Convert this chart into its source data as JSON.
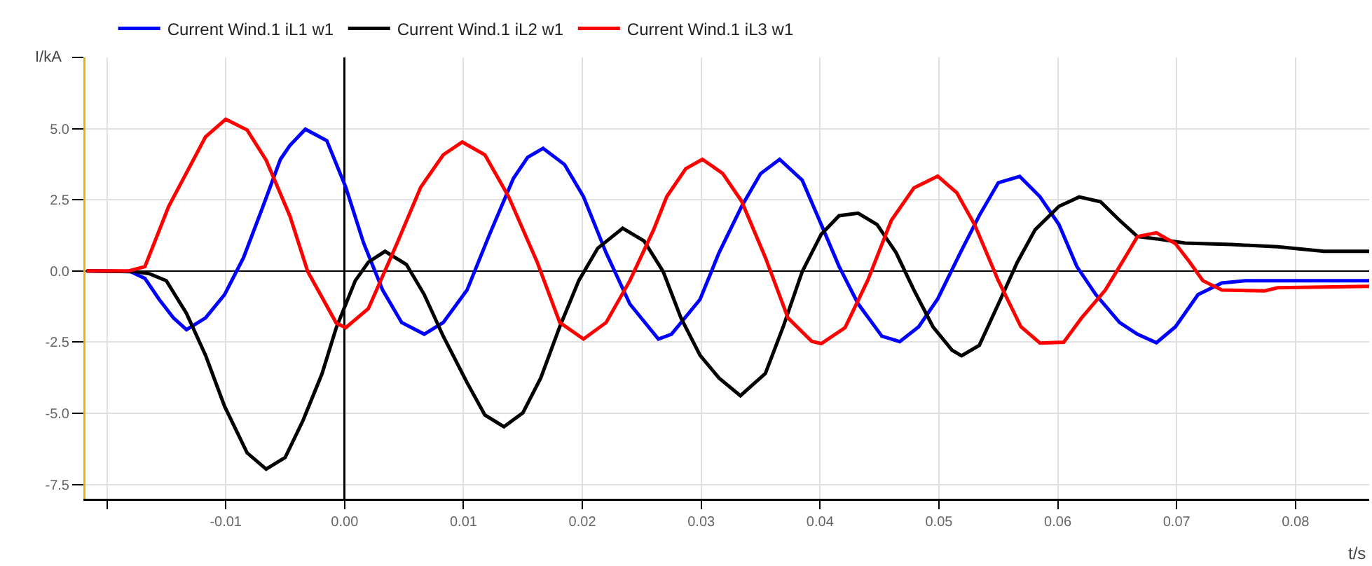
{
  "chart_data": {
    "type": "line",
    "xlabel": "t/s",
    "ylabel": "I/kA",
    "legend": "top left",
    "grid": true,
    "marker": "none",
    "line_style": "solid",
    "xlim": [
      -0.0218,
      0.0862
    ],
    "ylim": [
      -8,
      7.5
    ],
    "xticks": [
      {
        "value": -0.02,
        "label": null
      },
      {
        "value": -0.01,
        "label": "-0.01"
      },
      {
        "value": 0,
        "label": "0.00"
      },
      {
        "value": 0.01,
        "label": "0.01"
      },
      {
        "value": 0.02,
        "label": "0.02"
      },
      {
        "value": 0.03,
        "label": "0.03"
      },
      {
        "value": 0.04,
        "label": "0.04"
      },
      {
        "value": 0.05,
        "label": "0.05"
      },
      {
        "value": 0.06,
        "label": "0.06"
      },
      {
        "value": 0.07,
        "label": "0.07"
      },
      {
        "value": 0.08,
        "label": "0.08"
      }
    ],
    "yticks": [
      {
        "value": -7.5,
        "label": "-7.5"
      },
      {
        "value": -5,
        "label": "-5.0"
      },
      {
        "value": -2.5,
        "label": "-2.5"
      },
      {
        "value": 0,
        "label": "0.0"
      },
      {
        "value": 2.5,
        "label": "2.5"
      },
      {
        "value": 5,
        "label": "5.0"
      },
      {
        "value": 7.5,
        "label": null
      }
    ],
    "series": [
      {
        "name": "Current Wind.1 iL1 w1",
        "color": "#0000ff",
        "x": [
          -0.0217,
          -0.018,
          -0.0168,
          -0.0156,
          -0.0144,
          -0.0133,
          -0.0117,
          -0.0101,
          -0.0085,
          -0.007,
          -0.0054,
          -0.0046,
          -0.0033,
          -0.0015,
          0.0001,
          0.0016,
          0.0032,
          0.0048,
          0.0067,
          0.0083,
          0.0103,
          0.0122,
          0.0142,
          0.0154,
          0.0167,
          0.0185,
          0.0201,
          0.022,
          0.024,
          0.0264,
          0.0275,
          0.0299,
          0.0315,
          0.0334,
          0.035,
          0.0366,
          0.0385,
          0.0401,
          0.0416,
          0.0432,
          0.0452,
          0.0467,
          0.0483,
          0.0499,
          0.0518,
          0.0534,
          0.055,
          0.0568,
          0.0585,
          0.0601,
          0.0616,
          0.0632,
          0.0652,
          0.0667,
          0.0683,
          0.0699,
          0.0718,
          0.0738,
          0.0758,
          0.0862
        ],
        "values": [
          0,
          -0.02,
          -0.26,
          -1,
          -1.65,
          -2.06,
          -1.65,
          -0.83,
          0.47,
          2.12,
          3.92,
          4.41,
          4.98,
          4.58,
          2.94,
          0.98,
          -0.67,
          -1.81,
          -2.22,
          -1.81,
          -0.67,
          1.29,
          3.25,
          3.99,
          4.31,
          3.74,
          2.61,
          0.64,
          -1.16,
          -2.39,
          -2.22,
          -1,
          0.64,
          2.27,
          3.42,
          3.92,
          3.19,
          1.63,
          0.16,
          -1.15,
          -2.29,
          -2.48,
          -1.96,
          -0.98,
          0.64,
          1.95,
          3.1,
          3.32,
          2.61,
          1.63,
          0.16,
          -0.83,
          -1.81,
          -2.22,
          -2.52,
          -1.96,
          -0.83,
          -0.42,
          -0.34,
          -0.34
        ]
      },
      {
        "name": "Current Wind.1 iL2 w1",
        "color": "#000000",
        "x": [
          -0.0217,
          -0.0176,
          -0.0164,
          -0.015,
          -0.0133,
          -0.0117,
          -0.0101,
          -0.0082,
          -0.0066,
          -0.005,
          -0.0035,
          -0.0019,
          -0.0007,
          0.0009,
          0.002,
          0.0034,
          0.0052,
          0.0067,
          0.0083,
          0.0103,
          0.0118,
          0.0134,
          0.015,
          0.0165,
          0.0181,
          0.0197,
          0.0213,
          0.0234,
          0.0252,
          0.0268,
          0.0283,
          0.0299,
          0.0315,
          0.0333,
          0.0354,
          0.0369,
          0.0385,
          0.0401,
          0.0416,
          0.0432,
          0.0448,
          0.0464,
          0.0479,
          0.0495,
          0.0511,
          0.0519,
          0.0534,
          0.055,
          0.0566,
          0.0581,
          0.0601,
          0.0618,
          0.0636,
          0.0652,
          0.0667,
          0.0683,
          0.0707,
          0.0746,
          0.0785,
          0.0824,
          0.0862
        ],
        "values": [
          0,
          -0.02,
          -0.1,
          -0.34,
          -1.49,
          -2.96,
          -4.75,
          -6.39,
          -6.96,
          -6.55,
          -5.25,
          -3.61,
          -1.99,
          -0.34,
          0.31,
          0.69,
          0.23,
          -0.83,
          -2.29,
          -3.92,
          -5.06,
          -5.47,
          -4.98,
          -3.76,
          -1.96,
          -0.34,
          0.8,
          1.5,
          1.05,
          -0.02,
          -1.65,
          -2.96,
          -3.76,
          -4.38,
          -3.6,
          -1.96,
          -0.02,
          1.29,
          1.94,
          2.03,
          1.63,
          0.64,
          -0.67,
          -1.96,
          -2.78,
          -2.98,
          -2.61,
          -1.16,
          0.31,
          1.45,
          2.27,
          2.6,
          2.43,
          1.78,
          1.21,
          1.13,
          0.98,
          0.93,
          0.85,
          0.69,
          0.69
        ]
      },
      {
        "name": "Current Wind.1 iL3 w1",
        "color": "#ff0000",
        "x": [
          -0.0217,
          -0.0182,
          -0.0168,
          -0.0148,
          -0.0117,
          -0.01,
          -0.0082,
          -0.0066,
          -0.0046,
          -0.0031,
          -0.0007,
          0.0001,
          0.002,
          0.0044,
          0.0064,
          0.0083,
          0.0099,
          0.0118,
          0.0138,
          0.0162,
          0.0181,
          0.0201,
          0.022,
          0.024,
          0.026,
          0.0271,
          0.0287,
          0.0301,
          0.0318,
          0.0334,
          0.0354,
          0.0373,
          0.0393,
          0.0401,
          0.0421,
          0.044,
          0.046,
          0.0479,
          0.0499,
          0.0515,
          0.053,
          0.055,
          0.0569,
          0.0585,
          0.0605,
          0.062,
          0.064,
          0.0659,
          0.0667,
          0.0683,
          0.0699,
          0.0711,
          0.0722,
          0.0738,
          0.0774,
          0.0785,
          0.0862
        ],
        "values": [
          0,
          0,
          0.15,
          2.27,
          4.71,
          5.33,
          4.95,
          3.89,
          1.93,
          -0.02,
          -1.83,
          -1.99,
          -1.32,
          0.96,
          2.94,
          4.08,
          4.53,
          4.08,
          2.61,
          0.31,
          -1.81,
          -2.39,
          -1.81,
          -0.34,
          1.45,
          2.61,
          3.59,
          3.92,
          3.43,
          2.45,
          0.47,
          -1.65,
          -2.47,
          -2.55,
          -1.99,
          -0.34,
          1.78,
          2.92,
          3.33,
          2.75,
          1.63,
          -0.34,
          -1.96,
          -2.53,
          -2.5,
          -1.65,
          -0.67,
          0.64,
          1.21,
          1.34,
          0.96,
          0.31,
          -0.34,
          -0.67,
          -0.7,
          -0.59,
          -0.54
        ]
      }
    ]
  }
}
